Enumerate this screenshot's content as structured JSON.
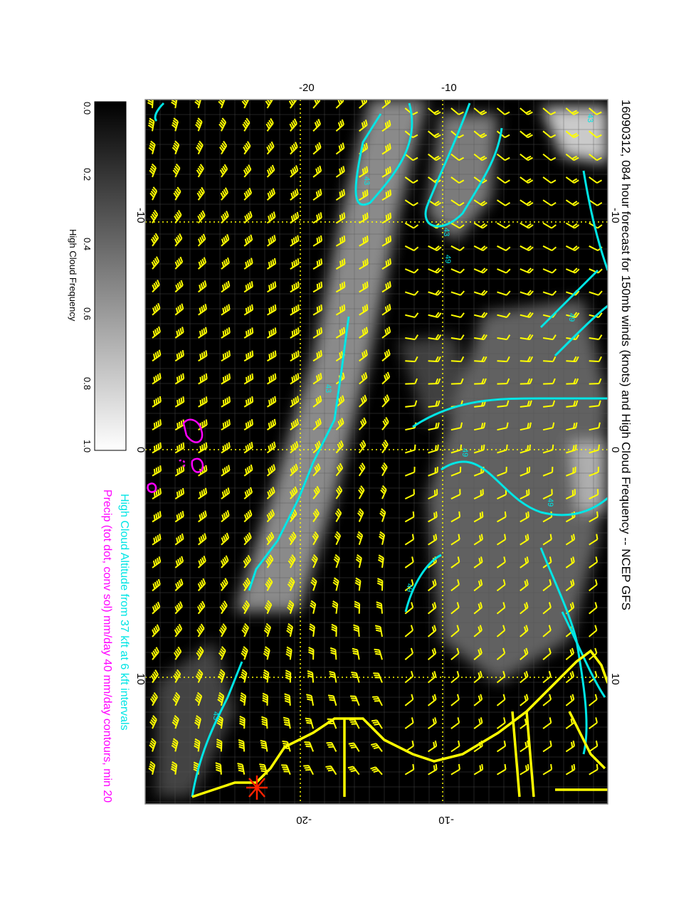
{
  "title": "16090312, 084 hour forecast for 150mb winds (knots) and High Cloud Frequency -- NCEP GFS",
  "legend_cyan": "High Cloud Altitude from 37 kft at 6 kft intervals",
  "legend_magenta": "Precip (tot dot, conv sol) mm/day 40 mm/day contours, min 20",
  "colorbar": {
    "label": "High Cloud Frequency",
    "ticks": [
      "0.0",
      "0.2",
      "0.4",
      "0.6",
      "0.8",
      "1.0"
    ]
  },
  "axes": {
    "lon_ticks_top": [
      "-10",
      "0",
      "10"
    ],
    "lon_ticks_bottom": [
      "-10",
      "0",
      "10"
    ],
    "lat_ticks_left": [
      "-20",
      "-10"
    ],
    "lat_ticks_right": [
      "-20",
      "-10"
    ]
  },
  "contour_labels": [
    "43",
    "43",
    "43",
    "43",
    "49",
    "49",
    "49",
    "49",
    "49",
    "43"
  ],
  "colors": {
    "background": "#000000",
    "wind_barbs": "#ffff00",
    "altitude_contours": "#00e5e5",
    "precip_contours": "#ff00ff",
    "coastline": "#ffff00",
    "grid": "#ffff00",
    "marker": "#ff2200"
  }
}
